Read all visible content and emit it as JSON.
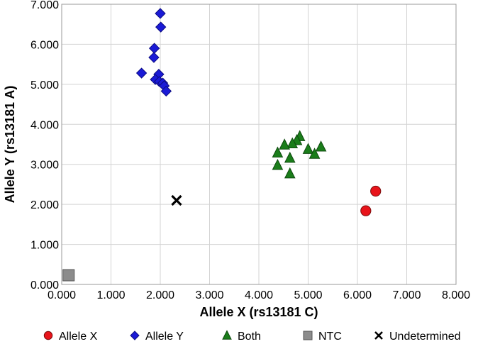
{
  "chart_data": {
    "type": "scatter",
    "title": "",
    "xlabel": "Allele X (rs13181 C)",
    "ylabel": "Allele Y (rs13181 A)",
    "xlim": [
      0,
      8
    ],
    "ylim": [
      0,
      7
    ],
    "x_ticks": [
      {
        "value": 0,
        "label": "0.000"
      },
      {
        "value": 1,
        "label": "1.000"
      },
      {
        "value": 2,
        "label": "2.000"
      },
      {
        "value": 3,
        "label": "3.000"
      },
      {
        "value": 4,
        "label": "4.000"
      },
      {
        "value": 5,
        "label": "5.000"
      },
      {
        "value": 6,
        "label": "6.000"
      },
      {
        "value": 7,
        "label": "7.000"
      },
      {
        "value": 8,
        "label": "8.000"
      }
    ],
    "y_ticks": [
      {
        "value": 0,
        "label": "0.000"
      },
      {
        "value": 1,
        "label": "1.000"
      },
      {
        "value": 2,
        "label": "2.000"
      },
      {
        "value": 3,
        "label": "3.000"
      },
      {
        "value": 4,
        "label": "4.000"
      },
      {
        "value": 5,
        "label": "5.000"
      },
      {
        "value": 6,
        "label": "6.000"
      },
      {
        "value": 7,
        "label": "7.000"
      }
    ],
    "grid": true,
    "legend_position": "bottom",
    "series": [
      {
        "name": "Allele X",
        "marker": "circle",
        "color": "#e8141b",
        "points": [
          {
            "x": 6.17,
            "y": 1.84
          },
          {
            "x": 6.37,
            "y": 2.33
          }
        ]
      },
      {
        "name": "Allele Y",
        "marker": "diamond",
        "color": "#1a1ad6",
        "points": [
          {
            "x": 2.0,
            "y": 6.77
          },
          {
            "x": 2.01,
            "y": 6.43
          },
          {
            "x": 1.88,
            "y": 5.9
          },
          {
            "x": 1.87,
            "y": 5.67
          },
          {
            "x": 1.62,
            "y": 5.28
          },
          {
            "x": 1.97,
            "y": 5.25
          },
          {
            "x": 1.9,
            "y": 5.12
          },
          {
            "x": 1.98,
            "y": 5.07
          },
          {
            "x": 2.05,
            "y": 5.03
          },
          {
            "x": 2.08,
            "y": 4.96
          },
          {
            "x": 2.12,
            "y": 4.83
          }
        ]
      },
      {
        "name": "Both",
        "marker": "triangle",
        "color": "#1a7d1a",
        "points": [
          {
            "x": 4.83,
            "y": 3.7
          },
          {
            "x": 4.77,
            "y": 3.6
          },
          {
            "x": 4.68,
            "y": 3.52
          },
          {
            "x": 4.52,
            "y": 3.49
          },
          {
            "x": 5.26,
            "y": 3.44
          },
          {
            "x": 5.0,
            "y": 3.38
          },
          {
            "x": 4.38,
            "y": 3.29
          },
          {
            "x": 5.13,
            "y": 3.26
          },
          {
            "x": 4.63,
            "y": 3.16
          },
          {
            "x": 4.38,
            "y": 2.98
          },
          {
            "x": 4.63,
            "y": 2.77
          }
        ]
      },
      {
        "name": "NTC",
        "marker": "square",
        "color": "#8c8c8c",
        "points": [
          {
            "x": 0.14,
            "y": 0.23
          }
        ]
      },
      {
        "name": "Undetermined",
        "marker": "cross",
        "color": "#000000",
        "points": [
          {
            "x": 2.33,
            "y": 2.1
          }
        ]
      }
    ]
  }
}
